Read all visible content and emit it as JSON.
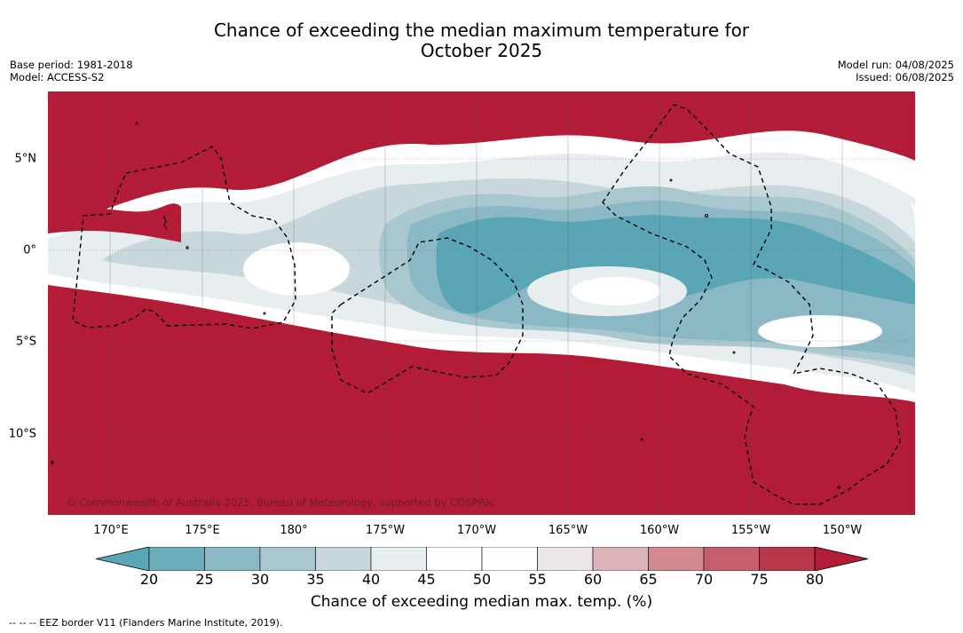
{
  "title_line1": "Chance of exceeding the median maximum temperature for",
  "title_line2": "October 2025",
  "base_period": "Base period: 1981-2018",
  "model": "Model: ACCESS-S2",
  "model_run": "Model run: 04/08/2025",
  "issued": "Issued: 06/08/2025",
  "map": {
    "lon_labels": [
      "170°E",
      "175°E",
      "180°",
      "175°W",
      "170°W",
      "165°W",
      "160°W",
      "155°W",
      "150°W"
    ],
    "lat_labels": [
      "5°N",
      "0°",
      "5°S",
      "10°S"
    ],
    "copyright": "© Commonwealth of Australia 2025, Bureau of Meteorology, supported by COSPPac"
  },
  "colorbar": {
    "ticks": [
      "20",
      "25",
      "30",
      "35",
      "40",
      "45",
      "50",
      "55",
      "60",
      "65",
      "70",
      "75",
      "80"
    ],
    "colors": [
      "#5aa6b6",
      "#6badba",
      "#8ab8c4",
      "#a9c7cf",
      "#c8d7dc",
      "#e8edef",
      "#ffffff",
      "#ffffff",
      "#ece6e8",
      "#dcb3b8",
      "#d38890",
      "#c4606c",
      "#b73848",
      "#b21c37"
    ],
    "title": "Chance of exceeding median max. temp. (%)"
  },
  "footnote": "--  --  -- EEZ border V11 (Flanders Marine Institute, 2019)."
}
